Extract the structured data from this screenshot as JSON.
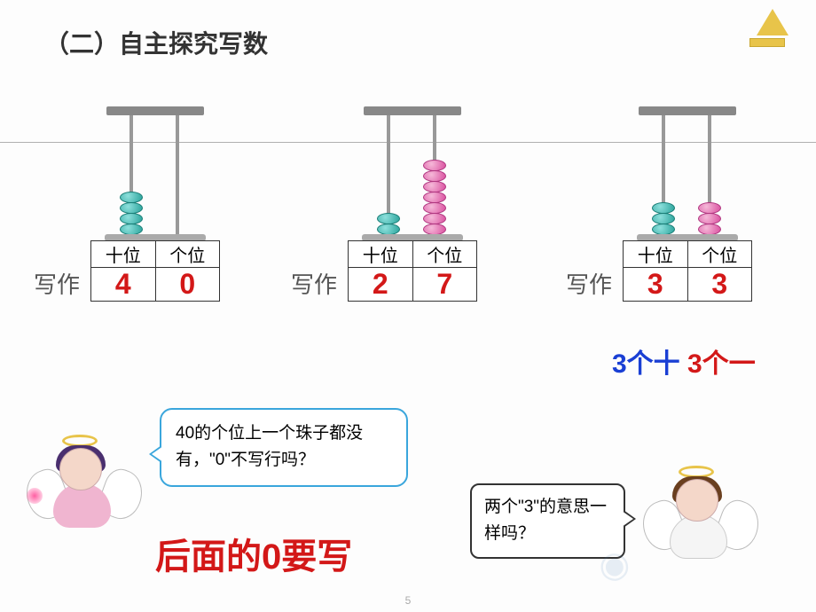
{
  "title": "（二）自主探究写数",
  "writeLabel": "写作",
  "placeLabels": {
    "tens": "十位",
    "ones": "个位"
  },
  "abacus": [
    {
      "tensBeads": 4,
      "tensColor": "teal",
      "onesBeads": 0,
      "onesColor": "pink",
      "tensDigit": "4",
      "onesDigit": "0"
    },
    {
      "tensBeads": 2,
      "tensColor": "teal",
      "onesBeads": 7,
      "onesColor": "pink",
      "tensDigit": "2",
      "onesDigit": "7"
    },
    {
      "tensBeads": 3,
      "tensColor": "teal",
      "onesBeads": 3,
      "onesColor": "pink",
      "tensDigit": "3",
      "onesDigit": "3"
    }
  ],
  "breakdown": {
    "part1": "3个十",
    "part2": "3个一"
  },
  "bubble1": "40的个位上一个珠子都没有，\"0\"不写行吗？",
  "bubble2": "两个\"3\"的意思一样吗？",
  "conclusion": "后面的0要写",
  "pageNumber": "5",
  "colors": {
    "titleText": "#333333",
    "numberRed": "#d31818",
    "breakdownBlue": "#1a3fd4",
    "bubble1Border": "#3aa6dc",
    "bubble2Border": "#333333",
    "tealBead": "#2aa39b",
    "pinkBead": "#d94f9f",
    "background": "#fdfdfd"
  },
  "fonts": {
    "titleSize": 28,
    "numberSize": 32,
    "breakdownSize": 30,
    "bubbleSize": 19,
    "conclusionSize": 40
  }
}
